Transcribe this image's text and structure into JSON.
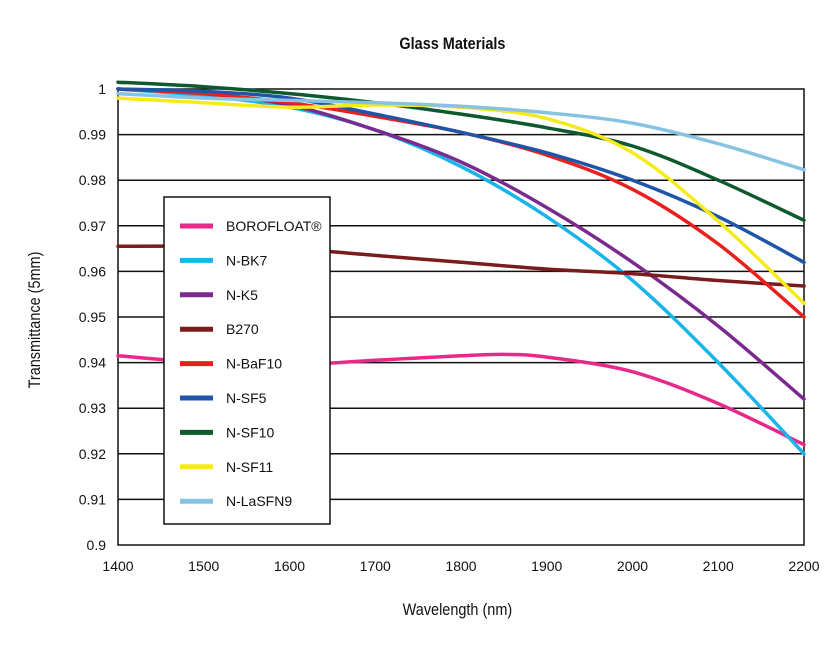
{
  "chart_data": {
    "type": "line",
    "title": "Glass Materials",
    "xlabel": "Wavelength (nm)",
    "ylabel": "Transmittance (5mm)",
    "xlim": [
      1400,
      2200
    ],
    "ylim": [
      0.9,
      1.0
    ],
    "xticks": [
      "1400",
      "1500",
      "1600",
      "1700",
      "1800",
      "1900",
      "2000",
      "2100",
      "2200"
    ],
    "yticks": [
      "0.9",
      "0.91",
      "0.92",
      "0.93",
      "0.94",
      "0.95",
      "0.96",
      "0.97",
      "0.98",
      "0.99",
      "1"
    ],
    "grid": "horizontal",
    "legend_position": "left",
    "series": [
      {
        "name": "BOROFLOAT®",
        "color": "#e8298a",
        "x": [
          1400,
          1500,
          1600,
          1700,
          1800,
          1850,
          1900,
          2000,
          2100,
          2200
        ],
        "y": [
          0.9415,
          0.94,
          0.9395,
          0.9405,
          0.9415,
          0.9418,
          0.9412,
          0.938,
          0.931,
          0.922
        ]
      },
      {
        "name": "N-BK7",
        "color": "#19b4ea",
        "x": [
          1400,
          1500,
          1600,
          1700,
          1800,
          1900,
          2000,
          2100,
          2200
        ],
        "y": [
          1.0,
          0.9985,
          0.996,
          0.991,
          0.983,
          0.972,
          0.958,
          0.94,
          0.92
        ]
      },
      {
        "name": "N-K5",
        "color": "#7a2a8e",
        "x": [
          1400,
          1500,
          1600,
          1700,
          1800,
          1900,
          2000,
          2100,
          2200
        ],
        "y": [
          1.0,
          0.999,
          0.9965,
          0.991,
          0.984,
          0.974,
          0.962,
          0.948,
          0.932
        ]
      },
      {
        "name": "B270",
        "color": "#7b1c1c",
        "x": [
          1400,
          1500,
          1600,
          1700,
          1800,
          1900,
          2000,
          2100,
          2200
        ],
        "y": [
          0.9655,
          0.9655,
          0.965,
          0.9635,
          0.962,
          0.9605,
          0.9595,
          0.958,
          0.9568
        ]
      },
      {
        "name": "N-BaF10",
        "color": "#e8201e",
        "x": [
          1400,
          1500,
          1600,
          1700,
          1800,
          1900,
          2000,
          2100,
          2200
        ],
        "y": [
          1.0,
          0.999,
          0.997,
          0.994,
          0.9905,
          0.9855,
          0.978,
          0.966,
          0.95
        ]
      },
      {
        "name": "N-SF5",
        "color": "#1e55a8",
        "x": [
          1400,
          1500,
          1600,
          1700,
          1800,
          1900,
          2000,
          2100,
          2200
        ],
        "y": [
          1.0,
          0.9995,
          0.998,
          0.9945,
          0.9905,
          0.986,
          0.98,
          0.972,
          0.962
        ]
      },
      {
        "name": "N-SF10",
        "color": "#0e5a2e",
        "x": [
          1400,
          1500,
          1600,
          1700,
          1800,
          1900,
          2000,
          2100,
          2200
        ],
        "y": [
          1.0015,
          1.0005,
          0.999,
          0.997,
          0.9945,
          0.9915,
          0.9875,
          0.98,
          0.9712
        ]
      },
      {
        "name": "N-SF11",
        "color": "#f6eb1a",
        "x": [
          1400,
          1500,
          1600,
          1700,
          1800,
          1900,
          2000,
          2100,
          2200
        ],
        "y": [
          0.998,
          0.997,
          0.996,
          0.9965,
          0.996,
          0.9935,
          0.986,
          0.971,
          0.953
        ]
      },
      {
        "name": "N-LaSFN9",
        "color": "#86c3e3",
        "x": [
          1400,
          1500,
          1600,
          1700,
          1800,
          1900,
          2000,
          2100,
          2200
        ],
        "y": [
          0.999,
          0.998,
          0.9975,
          0.997,
          0.9962,
          0.9948,
          0.9925,
          0.988,
          0.9823
        ]
      }
    ]
  }
}
